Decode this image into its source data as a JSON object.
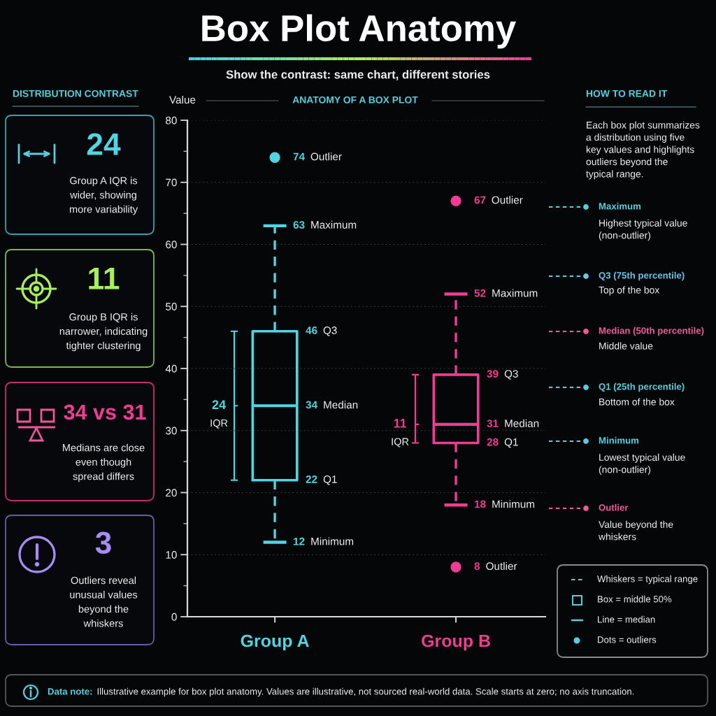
{
  "chart_data": {
    "type": "box",
    "title": "Box Plot Anatomy",
    "subtitle": "Show the contrast: same chart, different stories",
    "ylabel": "Value",
    "categories": [
      "Group A",
      "Group B"
    ],
    "colors": [
      "#4fd6e3",
      "#f03c92"
    ],
    "boxes": [
      {
        "low": 12,
        "q1": 22,
        "median": 34,
        "q3": 46,
        "high": 63,
        "outliers": [
          74
        ]
      },
      {
        "low": 18,
        "q1": 28,
        "median": 31,
        "q3": 39,
        "high": 52,
        "outliers": [
          67,
          8
        ]
      }
    ],
    "ylim": [
      0,
      80
    ],
    "yticks": [
      0,
      {
        "value": 5,
        "label": null
      },
      10,
      {
        "value": 15,
        "label": null
      },
      20,
      {
        "value": 25,
        "label": null
      },
      30,
      {
        "value": 35,
        "label": null
      },
      40,
      {
        "value": 45,
        "label": null
      },
      50,
      {
        "value": 55,
        "label": null
      },
      60,
      {
        "value": 65,
        "label": null
      },
      70,
      {
        "value": 75,
        "label": null
      },
      80
    ],
    "grid": "y",
    "line_style": "dashed",
    "marker": "circle",
    "annotations": [
      "ANATOMY OF A BOX PLOT",
      "DISTRIBUTION CONTRAST",
      "24",
      "Group A IQR is\nwider, showing\nmore variability",
      "11",
      "Group B IQR is\nnarrower, indicating\ntighter clustering",
      "34 vs 31",
      "Medians are close\neven though\nspread differs",
      "3",
      "Outliers reveal\nunusual values\nbeyond the\nwhiskers",
      "HOW TO READ IT",
      "Each box plot summarizes\na distribution using five\nkey values and highlights\noutliers beyond the\ntypical range.",
      "Maximum",
      "Highest typical value\n(non-outlier)",
      "Q3 (75th percentile)",
      "Top of the box",
      "Median (50th percentile)",
      "Middle value",
      "Q1 (25th percentile)",
      "Bottom of the box",
      "Minimum",
      "Lowest typical value\n(non-outlier)",
      "Outlier",
      "Value beyond the\nwhiskers",
      "Whiskers = typical range",
      "Box = middle 50%",
      "Line = median",
      "Dots = outliers",
      "Data note:",
      "Illustrative example for box plot anatomy. Values are illustrative, not sourced real-world data. Scale starts at zero; no axis truncation.",
      {
        "text": "63",
        "x": "Group A",
        "y": 63
      },
      "Maximum",
      {
        "text": "46",
        "x": "Group A",
        "y": 46
      },
      "Q3",
      {
        "text": "34",
        "x": "Group A",
        "y": 34
      },
      "Median",
      {
        "text": "22",
        "x": "Group A",
        "y": 22
      },
      "Q1",
      {
        "text": "12",
        "x": "Group A",
        "y": 12
      },
      "Minimum",
      {
        "text": "52",
        "x": "Group B",
        "y": 52
      },
      "Maximum",
      {
        "text": "39",
        "x": "Group B",
        "y": 39
      },
      "Q3",
      {
        "text": "31",
        "x": "Group B",
        "y": 31
      },
      "Median",
      {
        "text": "28",
        "x": "Group B",
        "y": 28
      },
      "Q1",
      {
        "text": "18",
        "x": "Group B",
        "y": 18
      },
      "Minimum",
      "74",
      "Outlier",
      "67",
      "Outlier",
      "8",
      "Outlier",
      "24",
      "IQR",
      "11",
      "IQR"
    ]
  }
}
